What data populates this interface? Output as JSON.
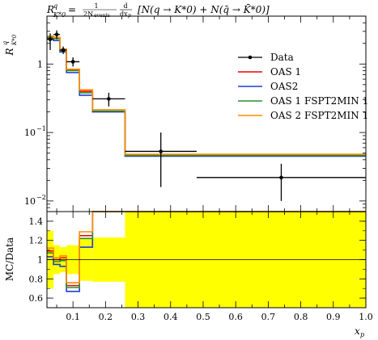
{
  "chart_data": {
    "type": "line",
    "title_tex": "R^{q}_{K^{*0}} = 1/(2N_events) d/dx_p [N(q→K*0) + N(q̄→K̄*0)]",
    "title_parts": {
      "lhs": "R",
      "lhs_sup": "q",
      "lhs_sub": "K*0",
      "eq": " = ",
      "frac_num": "1",
      "frac_den": "2N",
      "frac_den_sub": "events",
      "d_num": "d",
      "d_den": "dx",
      "d_den_sub": "p",
      "bracket": "[N(q → K*0) + N(q̄ → K̄*0)]"
    },
    "ylabel_main": "R",
    "ylabel_main_sup": "q",
    "ylabel_main_sub": "K*0",
    "ylabel_ratio": "MC/Data",
    "xlabel": "x",
    "xlabel_sub": "p",
    "yscale_main": "log",
    "ylim_main": [
      0.007,
      5
    ],
    "ylim_ratio": [
      0.5,
      1.5
    ],
    "xlim": [
      0.02,
      1.0
    ],
    "x_ticks": [
      "0.1",
      "0.2",
      "0.3",
      "0.4",
      "0.5",
      "0.6",
      "0.7",
      "0.8",
      "0.9",
      "1.0"
    ],
    "y_ticks_main": [
      {
        "v": 1,
        "label": "1"
      },
      {
        "v": 0.1,
        "label": "10",
        "exp": "−1"
      },
      {
        "v": 0.01,
        "label": "10",
        "exp": "−2"
      }
    ],
    "y_ticks_ratio": [
      "0.6",
      "0.8",
      "1",
      "1.2",
      "1.4"
    ],
    "legend_position": "top-right",
    "bin_edges": [
      0.02,
      0.04,
      0.06,
      0.08,
      0.12,
      0.16,
      0.26,
      0.48,
      1.0
    ],
    "data": {
      "name": "Data",
      "points": [
        {
          "x": 0.03,
          "y": 2.3,
          "ylo": 1.6,
          "yhi": 2.8,
          "xlo": 0.02,
          "xhi": 0.04
        },
        {
          "x": 0.05,
          "y": 2.7,
          "ylo": 2.3,
          "yhi": 3.1,
          "xlo": 0.04,
          "xhi": 0.06
        },
        {
          "x": 0.07,
          "y": 1.6,
          "ylo": 1.4,
          "yhi": 1.8,
          "xlo": 0.06,
          "xhi": 0.08
        },
        {
          "x": 0.1,
          "y": 1.08,
          "ylo": 0.92,
          "yhi": 1.25,
          "xlo": 0.08,
          "xhi": 0.12
        },
        {
          "x": 0.21,
          "y": 0.31,
          "ylo": 0.24,
          "yhi": 0.38,
          "xlo": 0.16,
          "xhi": 0.26
        },
        {
          "x": 0.37,
          "y": 0.053,
          "ylo": 0.016,
          "yhi": 0.1,
          "xlo": 0.26,
          "xhi": 0.48
        },
        {
          "x": 0.74,
          "y": 0.022,
          "ylo": 0.01,
          "yhi": 0.035,
          "xlo": 0.48,
          "xhi": 1.0
        }
      ]
    },
    "series": [
      {
        "name": "OAS 1",
        "color": "#ee0000",
        "values": [
          2.5,
          2.4,
          1.62,
          0.82,
          0.4,
          0.205,
          0.047,
          0.047
        ],
        "ratio": [
          1.09,
          1.0,
          1.02,
          0.73,
          1.25,
          1.55,
          1.55,
          1.55
        ]
      },
      {
        "name": "OAS2",
        "color": "#1a3fcf",
        "values": [
          2.35,
          2.2,
          1.5,
          0.75,
          0.35,
          0.2,
          0.045,
          0.045
        ],
        "ratio": [
          1.03,
          0.95,
          0.93,
          0.67,
          1.13,
          1.55,
          1.55,
          1.55
        ]
      },
      {
        "name": "OAS 1 FSPT2MIN 1",
        "color": "#2e8b2e",
        "values": [
          2.45,
          2.35,
          1.58,
          0.8,
          0.38,
          0.205,
          0.046,
          0.046
        ],
        "ratio": [
          1.07,
          0.98,
          0.99,
          0.71,
          1.22,
          1.55,
          1.55,
          1.55
        ]
      },
      {
        "name": "OAS 2 FSPT2MIN 1",
        "color": "#ff8c00",
        "values": [
          2.55,
          2.45,
          1.65,
          0.84,
          0.42,
          0.215,
          0.048,
          0.048
        ],
        "ratio": [
          1.12,
          1.02,
          1.04,
          0.76,
          1.29,
          1.55,
          1.55,
          1.55
        ]
      }
    ],
    "uncertainty_band": {
      "color": "#ffff00",
      "bins": [
        {
          "x0": 0.02,
          "x1": 0.04,
          "lo": 0.7,
          "hi": 1.3
        },
        {
          "x0": 0.04,
          "x1": 0.06,
          "lo": 0.85,
          "hi": 1.15
        },
        {
          "x0": 0.06,
          "x1": 0.08,
          "lo": 0.87,
          "hi": 1.13
        },
        {
          "x0": 0.08,
          "x1": 0.12,
          "lo": 0.85,
          "hi": 1.15
        },
        {
          "x0": 0.12,
          "x1": 0.16,
          "lo": 0.78,
          "hi": 1.22
        },
        {
          "x0": 0.16,
          "x1": 0.26,
          "lo": 0.77,
          "hi": 1.23
        },
        {
          "x0": 0.26,
          "x1": 1.0,
          "lo": 0.5,
          "hi": 1.5
        }
      ]
    },
    "data_band_color": "#ffffff"
  }
}
